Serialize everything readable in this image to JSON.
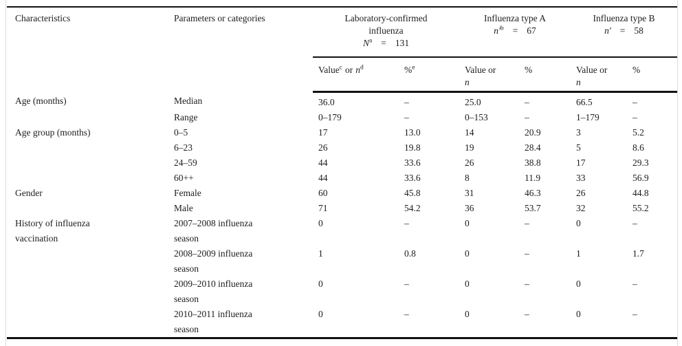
{
  "header": {
    "characteristics": "Characteristics",
    "parameters": "Parameters or categories",
    "groups": [
      {
        "title_line1": "Laboratory-confirmed",
        "title_line2": "influenza",
        "symbol": "N",
        "symbol_sup": "a",
        "equals": "=",
        "count": "131",
        "sub_value": {
          "v1": "Value",
          "sup1": "c",
          "mid": "or",
          "n": "n",
          "sup2": "d"
        },
        "sub_pct": {
          "pct": "%",
          "sup": "e"
        }
      },
      {
        "title_line1": "Influenza type A",
        "symbol": "n′",
        "symbol_sup": "b",
        "equals": "=",
        "count": "67",
        "sub_value": {
          "v1": "Value or",
          "n": "n"
        },
        "sub_pct": {
          "pct": "%"
        }
      },
      {
        "title_line1": "Influenza type B",
        "symbol": "n′",
        "equals": "=",
        "count": "58",
        "sub_value": {
          "v1": "Value or",
          "n": "n"
        },
        "sub_pct": {
          "pct": "%"
        }
      }
    ]
  },
  "rows": [
    {
      "char": [
        "Age (months)"
      ],
      "param": [
        "Median"
      ],
      "vals": [
        "36.0",
        "–",
        "25.0",
        "–",
        "66.5",
        "–"
      ]
    },
    {
      "char": [],
      "param": [
        "Range"
      ],
      "vals": [
        "0–179",
        "–",
        "0–153",
        "–",
        "1–179",
        "–"
      ]
    },
    {
      "char": [
        "Age group (months)"
      ],
      "param": [
        "0–5"
      ],
      "vals": [
        "17",
        "13.0",
        "14",
        "20.9",
        "3",
        "5.2"
      ]
    },
    {
      "char": [],
      "param": [
        "6–23"
      ],
      "vals": [
        "26",
        "19.8",
        "19",
        "28.4",
        "5",
        "8.6"
      ]
    },
    {
      "char": [],
      "param": [
        "24–59"
      ],
      "vals": [
        "44",
        "33.6",
        "26",
        "38.8",
        "17",
        "29.3"
      ]
    },
    {
      "char": [],
      "param": [
        "60++"
      ],
      "vals": [
        "44",
        "33.6",
        "8",
        "11.9",
        "33",
        "56.9"
      ]
    },
    {
      "char": [
        "Gender"
      ],
      "param": [
        "Female"
      ],
      "vals": [
        "60",
        "45.8",
        "31",
        "46.3",
        "26",
        "44.8"
      ]
    },
    {
      "char": [],
      "param": [
        "Male"
      ],
      "vals": [
        "71",
        "54.2",
        "36",
        "53.7",
        "32",
        "55.2"
      ]
    },
    {
      "char": [
        "History of influenza",
        "vaccination"
      ],
      "param": [
        "2007–2008 influenza",
        "season"
      ],
      "vals": [
        "0",
        "–",
        "0",
        "–",
        "0",
        "–"
      ]
    },
    {
      "char": [],
      "param": [
        "2008–2009 influenza",
        "season"
      ],
      "vals": [
        "1",
        "0.8",
        "0",
        "–",
        "1",
        "1.7"
      ]
    },
    {
      "char": [],
      "param": [
        "2009–2010 influenza",
        "season"
      ],
      "vals": [
        "0",
        "–",
        "0",
        "–",
        "0",
        "–"
      ]
    },
    {
      "char": [],
      "param": [
        "2010–2011 influenza",
        "season"
      ],
      "vals": [
        "0",
        "–",
        "0",
        "–",
        "0",
        "–"
      ]
    }
  ]
}
